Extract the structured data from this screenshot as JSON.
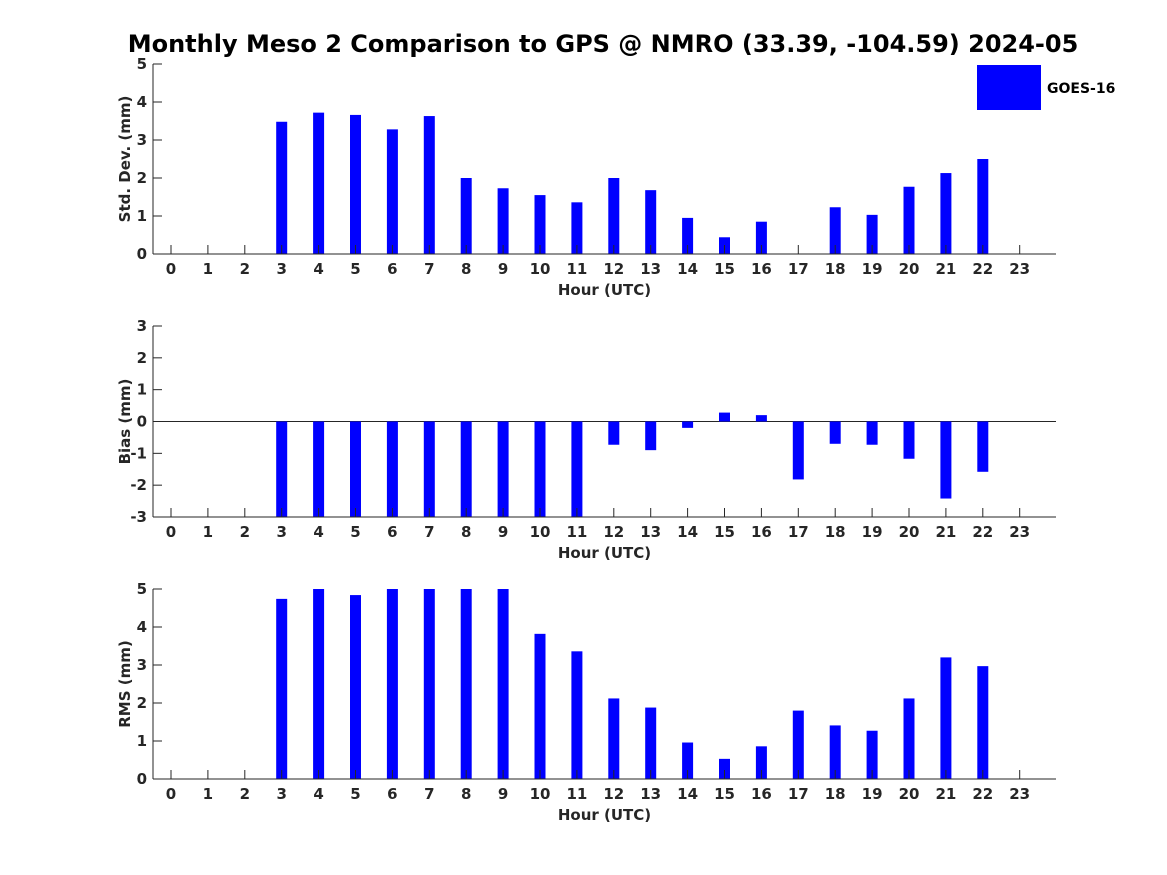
{
  "figure": {
    "title": "Monthly Meso 2 Comparison to GPS @ NMRO (33.39, -104.59) 2024-05",
    "legend": {
      "label": "GOES-16",
      "color": "#0000ff",
      "position": "top-right"
    }
  },
  "chart_data": [
    {
      "type": "bar",
      "xlabel": "Hour (UTC)",
      "ylabel": "Std. Dev. (mm)",
      "ylim": [
        0,
        5
      ],
      "yticks": [
        0,
        1,
        2,
        3,
        4,
        5
      ],
      "categories": [
        "0",
        "1",
        "2",
        "3",
        "4",
        "5",
        "6",
        "7",
        "8",
        "9",
        "10",
        "11",
        "12",
        "13",
        "14",
        "15",
        "16",
        "17",
        "18",
        "19",
        "20",
        "21",
        "22",
        "23"
      ],
      "series": [
        {
          "name": "GOES-16",
          "color": "#0000ff",
          "values": [
            null,
            null,
            null,
            3.48,
            3.72,
            3.66,
            3.28,
            3.63,
            2.0,
            1.73,
            1.55,
            1.36,
            2.0,
            1.68,
            0.95,
            0.44,
            0.85,
            null,
            1.23,
            1.03,
            1.77,
            2.13,
            2.5,
            null
          ]
        }
      ],
      "grid": false
    },
    {
      "type": "bar",
      "xlabel": "Hour (UTC)",
      "ylabel": "Bias (mm)",
      "ylim": [
        -3,
        3
      ],
      "yticks": [
        -3,
        -2,
        -1,
        0,
        1,
        2,
        3
      ],
      "categories": [
        "0",
        "1",
        "2",
        "3",
        "4",
        "5",
        "6",
        "7",
        "8",
        "9",
        "10",
        "11",
        "12",
        "13",
        "14",
        "15",
        "16",
        "17",
        "18",
        "19",
        "20",
        "21",
        "22",
        "23"
      ],
      "series": [
        {
          "name": "GOES-16",
          "color": "#0000ff",
          "values": [
            null,
            null,
            null,
            -3.0,
            -3.0,
            -3.0,
            -3.0,
            -3.0,
            -3.0,
            -3.0,
            -3.0,
            -3.0,
            -0.73,
            -0.9,
            -0.2,
            0.28,
            0.2,
            -1.82,
            -0.7,
            -0.73,
            -1.17,
            -2.42,
            -1.58,
            null
          ]
        }
      ],
      "grid": false
    },
    {
      "type": "bar",
      "xlabel": "Hour (UTC)",
      "ylabel": "RMS (mm)",
      "ylim": [
        0,
        5
      ],
      "yticks": [
        0,
        1,
        2,
        3,
        4,
        5
      ],
      "categories": [
        "0",
        "1",
        "2",
        "3",
        "4",
        "5",
        "6",
        "7",
        "8",
        "9",
        "10",
        "11",
        "12",
        "13",
        "14",
        "15",
        "16",
        "17",
        "18",
        "19",
        "20",
        "21",
        "22",
        "23"
      ],
      "series": [
        {
          "name": "GOES-16",
          "color": "#0000ff",
          "values": [
            null,
            null,
            null,
            4.74,
            5.0,
            4.84,
            5.0,
            5.0,
            5.0,
            5.0,
            3.82,
            3.36,
            2.12,
            1.88,
            0.96,
            0.53,
            0.86,
            1.8,
            1.41,
            1.27,
            2.12,
            3.2,
            2.97,
            null
          ]
        }
      ],
      "grid": false
    }
  ]
}
